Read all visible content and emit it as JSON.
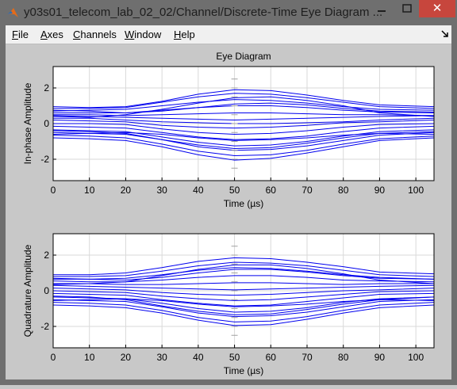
{
  "window": {
    "title": "y03s01_telecom_lab_02_02/Channel/Discrete-Time Eye Diagram ...",
    "close_glyph": "✕"
  },
  "menu": [
    {
      "accel": "F",
      "rest": "ile"
    },
    {
      "accel": "A",
      "rest": "xes"
    },
    {
      "accel": "C",
      "rest": "hannels"
    },
    {
      "accel": "W",
      "rest": "indow"
    },
    {
      "accel": "H",
      "rest": "elp"
    }
  ],
  "colors": {
    "trace": "#0000ee",
    "axes_bg": "#ffffff",
    "figure_bg": "#c8c8c8"
  },
  "chart_data": [
    {
      "type": "line",
      "title": "Eye Diagram",
      "xlabel": "Time (µs)",
      "ylabel": "In-phase Amplitude",
      "xlim": [
        0,
        105
      ],
      "ylim": [
        -3.2,
        3.2
      ],
      "xticks": [
        "0",
        "10",
        "20",
        "30",
        "40",
        "50",
        "60",
        "70",
        "80",
        "90",
        "100"
      ],
      "yticks": [
        "2",
        "0",
        "-2"
      ],
      "grid": true,
      "series": [
        {
          "x": [
            0,
            10,
            20,
            30,
            40,
            50,
            60,
            70,
            80,
            90,
            105
          ],
          "y": [
            0.95,
            0.9,
            0.95,
            1.25,
            1.65,
            1.9,
            1.85,
            1.6,
            1.3,
            1.05,
            0.95
          ]
        },
        {
          "x": [
            0,
            10,
            20,
            30,
            40,
            50,
            60,
            70,
            80,
            90,
            105
          ],
          "y": [
            0.85,
            0.85,
            0.9,
            1.2,
            1.5,
            1.7,
            1.65,
            1.45,
            1.2,
            0.95,
            0.85
          ]
        },
        {
          "x": [
            0,
            10,
            20,
            30,
            40,
            50,
            60,
            70,
            80,
            90,
            105
          ],
          "y": [
            0.7,
            0.75,
            0.8,
            1.0,
            1.2,
            1.35,
            1.3,
            1.15,
            0.95,
            0.8,
            0.75
          ]
        },
        {
          "x": [
            0,
            10,
            20,
            30,
            40,
            50,
            60,
            70,
            80,
            90,
            105
          ],
          "y": [
            0.6,
            0.6,
            0.6,
            0.75,
            0.9,
            1.0,
            1.0,
            0.9,
            0.75,
            0.65,
            0.6
          ]
        },
        {
          "x": [
            0,
            10,
            20,
            30,
            40,
            50,
            60,
            70,
            80,
            90,
            105
          ],
          "y": [
            0.5,
            0.5,
            0.45,
            0.5,
            0.55,
            0.6,
            0.6,
            0.55,
            0.5,
            0.5,
            0.45
          ]
        },
        {
          "x": [
            0,
            10,
            20,
            30,
            40,
            50,
            60,
            70,
            80,
            90,
            105
          ],
          "y": [
            0.45,
            0.4,
            0.35,
            0.3,
            0.25,
            0.2,
            0.25,
            0.3,
            0.35,
            0.4,
            0.45
          ]
        },
        {
          "x": [
            0,
            10,
            20,
            30,
            40,
            50,
            60,
            70,
            80,
            90,
            105
          ],
          "y": [
            0.3,
            0.3,
            0.2,
            0.1,
            0.05,
            0.0,
            0.0,
            0.05,
            0.1,
            0.2,
            0.3
          ]
        },
        {
          "x": [
            0,
            10,
            20,
            30,
            40,
            50,
            60,
            70,
            80,
            90,
            105
          ],
          "y": [
            0.2,
            0.15,
            0.1,
            -0.1,
            -0.2,
            -0.25,
            -0.2,
            -0.1,
            0.05,
            0.1,
            0.2
          ]
        },
        {
          "x": [
            0,
            10,
            20,
            30,
            40,
            50,
            60,
            70,
            80,
            90,
            105
          ],
          "y": [
            0.0,
            0.0,
            -0.05,
            -0.3,
            -0.5,
            -0.6,
            -0.55,
            -0.4,
            -0.2,
            -0.05,
            0.0
          ]
        },
        {
          "x": [
            0,
            10,
            20,
            30,
            40,
            50,
            60,
            70,
            80,
            90,
            105
          ],
          "y": [
            -0.15,
            -0.2,
            -0.25,
            -0.5,
            -0.75,
            -0.9,
            -0.85,
            -0.7,
            -0.45,
            -0.25,
            -0.15
          ]
        },
        {
          "x": [
            0,
            10,
            20,
            30,
            40,
            50,
            60,
            70,
            80,
            90,
            105
          ],
          "y": [
            -0.35,
            -0.4,
            -0.45,
            -0.75,
            -1.05,
            -1.25,
            -1.2,
            -1.0,
            -0.7,
            -0.45,
            -0.35
          ]
        },
        {
          "x": [
            0,
            10,
            20,
            30,
            40,
            50,
            60,
            70,
            80,
            90,
            105
          ],
          "y": [
            -0.5,
            -0.55,
            -0.6,
            -0.9,
            -1.3,
            -1.5,
            -1.45,
            -1.25,
            -0.95,
            -0.65,
            -0.5
          ]
        },
        {
          "x": [
            0,
            10,
            20,
            30,
            40,
            50,
            60,
            70,
            80,
            90,
            105
          ],
          "y": [
            -0.65,
            -0.7,
            -0.8,
            -1.15,
            -1.55,
            -1.8,
            -1.75,
            -1.5,
            -1.15,
            -0.85,
            -0.7
          ]
        },
        {
          "x": [
            0,
            10,
            20,
            30,
            40,
            50,
            60,
            70,
            80,
            90,
            105
          ],
          "y": [
            -0.8,
            -0.85,
            -0.95,
            -1.3,
            -1.75,
            -2.05,
            -1.95,
            -1.65,
            -1.3,
            -0.95,
            -0.8
          ]
        },
        {
          "x": [
            0,
            10,
            20,
            30,
            40,
            50,
            60,
            70,
            80,
            90,
            105
          ],
          "y": [
            0.75,
            0.7,
            0.6,
            0.7,
            0.9,
            1.1,
            1.15,
            1.05,
            0.85,
            0.7,
            0.65
          ]
        },
        {
          "x": [
            0,
            10,
            20,
            30,
            40,
            50,
            60,
            70,
            80,
            90,
            105
          ],
          "y": [
            -0.6,
            -0.55,
            -0.5,
            -0.6,
            -0.8,
            -0.95,
            -0.9,
            -0.8,
            -0.65,
            -0.55,
            -0.6
          ]
        },
        {
          "x": [
            0,
            10,
            20,
            30,
            40,
            50,
            60,
            70,
            80,
            90,
            105
          ],
          "y": [
            0.4,
            0.35,
            0.5,
            0.8,
            1.15,
            1.45,
            1.5,
            1.3,
            1.0,
            0.6,
            0.4
          ]
        },
        {
          "x": [
            0,
            10,
            20,
            30,
            40,
            50,
            60,
            70,
            80,
            90,
            105
          ],
          "y": [
            -0.4,
            -0.45,
            -0.55,
            -0.9,
            -1.2,
            -1.4,
            -1.35,
            -1.1,
            -0.8,
            -0.55,
            -0.45
          ]
        }
      ]
    },
    {
      "type": "line",
      "title": "",
      "xlabel": "Time (µs)",
      "ylabel": "Quadrature Amplitude",
      "xlim": [
        0,
        105
      ],
      "ylim": [
        -3.2,
        3.2
      ],
      "xticks": [
        "0",
        "10",
        "20",
        "30",
        "40",
        "50",
        "60",
        "70",
        "80",
        "90",
        "100"
      ],
      "yticks": [
        "2",
        "0",
        "-2"
      ],
      "grid": true,
      "series": [
        {
          "x": [
            0,
            10,
            20,
            30,
            40,
            50,
            60,
            70,
            80,
            90,
            105
          ],
          "y": [
            0.9,
            0.9,
            1.0,
            1.3,
            1.65,
            1.85,
            1.8,
            1.6,
            1.35,
            1.05,
            0.95
          ]
        },
        {
          "x": [
            0,
            10,
            20,
            30,
            40,
            50,
            60,
            70,
            80,
            90,
            105
          ],
          "y": [
            0.8,
            0.8,
            0.85,
            1.1,
            1.4,
            1.6,
            1.55,
            1.4,
            1.15,
            0.9,
            0.8
          ]
        },
        {
          "x": [
            0,
            10,
            20,
            30,
            40,
            50,
            60,
            70,
            80,
            90,
            105
          ],
          "y": [
            0.65,
            0.65,
            0.7,
            0.9,
            1.15,
            1.3,
            1.25,
            1.1,
            0.9,
            0.75,
            0.65
          ]
        },
        {
          "x": [
            0,
            10,
            20,
            30,
            40,
            50,
            60,
            70,
            80,
            90,
            105
          ],
          "y": [
            0.55,
            0.5,
            0.5,
            0.6,
            0.75,
            0.85,
            0.85,
            0.75,
            0.6,
            0.55,
            0.5
          ]
        },
        {
          "x": [
            0,
            10,
            20,
            30,
            40,
            50,
            60,
            70,
            80,
            90,
            105
          ],
          "y": [
            0.4,
            0.4,
            0.35,
            0.35,
            0.4,
            0.45,
            0.45,
            0.4,
            0.35,
            0.4,
            0.4
          ]
        },
        {
          "x": [
            0,
            10,
            20,
            30,
            40,
            50,
            60,
            70,
            80,
            90,
            105
          ],
          "y": [
            0.3,
            0.25,
            0.2,
            0.15,
            0.1,
            0.05,
            0.1,
            0.15,
            0.2,
            0.25,
            0.3
          ]
        },
        {
          "x": [
            0,
            10,
            20,
            30,
            40,
            50,
            60,
            70,
            80,
            90,
            105
          ],
          "y": [
            0.15,
            0.1,
            0.05,
            -0.1,
            -0.2,
            -0.25,
            -0.2,
            -0.1,
            0.0,
            0.05,
            0.15
          ]
        },
        {
          "x": [
            0,
            10,
            20,
            30,
            40,
            50,
            60,
            70,
            80,
            90,
            105
          ],
          "y": [
            0.0,
            -0.05,
            -0.1,
            -0.3,
            -0.45,
            -0.55,
            -0.5,
            -0.35,
            -0.2,
            -0.05,
            0.0
          ]
        },
        {
          "x": [
            0,
            10,
            20,
            30,
            40,
            50,
            60,
            70,
            80,
            90,
            105
          ],
          "y": [
            -0.15,
            -0.2,
            -0.25,
            -0.5,
            -0.7,
            -0.85,
            -0.8,
            -0.6,
            -0.4,
            -0.2,
            -0.15
          ]
        },
        {
          "x": [
            0,
            10,
            20,
            30,
            40,
            50,
            60,
            70,
            80,
            90,
            105
          ],
          "y": [
            -0.35,
            -0.4,
            -0.45,
            -0.7,
            -1.0,
            -1.2,
            -1.15,
            -0.95,
            -0.65,
            -0.45,
            -0.35
          ]
        },
        {
          "x": [
            0,
            10,
            20,
            30,
            40,
            50,
            60,
            70,
            80,
            90,
            105
          ],
          "y": [
            -0.5,
            -0.55,
            -0.6,
            -0.9,
            -1.25,
            -1.45,
            -1.4,
            -1.2,
            -0.9,
            -0.6,
            -0.5
          ]
        },
        {
          "x": [
            0,
            10,
            20,
            30,
            40,
            50,
            60,
            70,
            80,
            90,
            105
          ],
          "y": [
            -0.65,
            -0.7,
            -0.8,
            -1.1,
            -1.5,
            -1.75,
            -1.7,
            -1.45,
            -1.1,
            -0.8,
            -0.65
          ]
        },
        {
          "x": [
            0,
            10,
            20,
            30,
            40,
            50,
            60,
            70,
            80,
            90,
            105
          ],
          "y": [
            -0.8,
            -0.85,
            -0.95,
            -1.25,
            -1.65,
            -1.95,
            -1.9,
            -1.6,
            -1.25,
            -0.95,
            -0.8
          ]
        },
        {
          "x": [
            0,
            10,
            20,
            30,
            40,
            50,
            60,
            70,
            80,
            90,
            105
          ],
          "y": [
            0.7,
            0.65,
            0.6,
            0.75,
            1.0,
            1.2,
            1.2,
            1.05,
            0.85,
            0.7,
            0.65
          ]
        },
        {
          "x": [
            0,
            10,
            20,
            30,
            40,
            50,
            60,
            70,
            80,
            90,
            105
          ],
          "y": [
            -0.55,
            -0.5,
            -0.45,
            -0.55,
            -0.75,
            -0.9,
            -0.85,
            -0.75,
            -0.6,
            -0.5,
            -0.55
          ]
        },
        {
          "x": [
            0,
            10,
            20,
            30,
            40,
            50,
            60,
            70,
            80,
            90,
            105
          ],
          "y": [
            0.35,
            0.4,
            0.5,
            0.85,
            1.2,
            1.45,
            1.45,
            1.25,
            0.95,
            0.6,
            0.4
          ]
        },
        {
          "x": [
            0,
            10,
            20,
            30,
            40,
            50,
            60,
            70,
            80,
            90,
            105
          ],
          "y": [
            -0.3,
            -0.35,
            -0.5,
            -0.85,
            -1.15,
            -1.35,
            -1.3,
            -1.05,
            -0.75,
            -0.5,
            -0.35
          ]
        }
      ]
    }
  ]
}
